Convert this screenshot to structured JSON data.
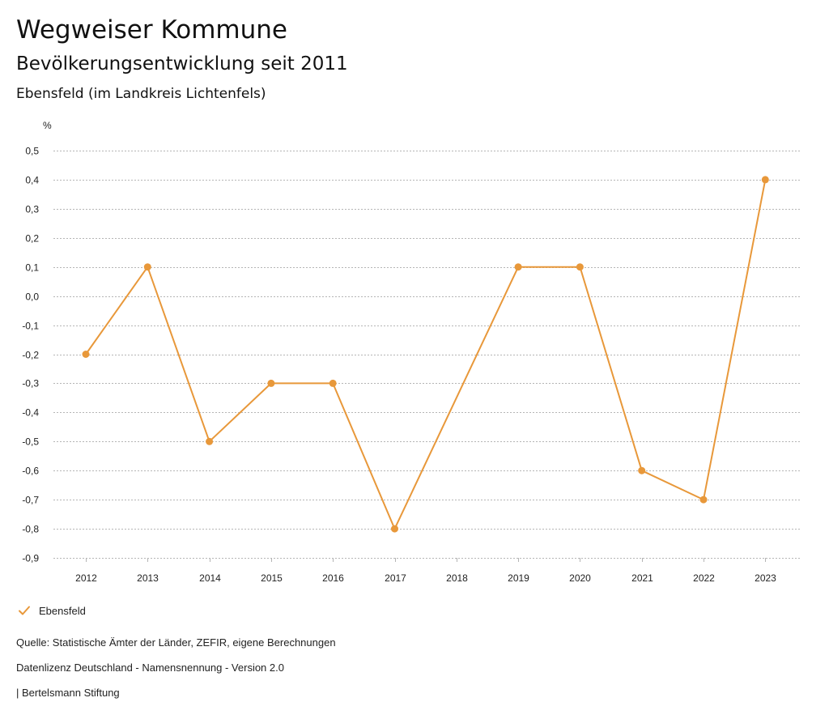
{
  "header": {
    "title": "Wegweiser Kommune",
    "subtitle": "Bevölkerungsentwicklung seit 2011",
    "region": "Ebensfeld (im Landkreis Lichtenfels)"
  },
  "legend": {
    "label": "Ebensfeld",
    "icon": "checkmark-icon"
  },
  "footer": {
    "source": "Quelle: Statistische Ämter der Länder, ZEFIR, eigene Berechnungen",
    "license": "Datenlizenz Deutschland - Namensnennung - Version 2.0",
    "publisher": "| Bertelsmann Stiftung"
  },
  "colors": {
    "series": "#e8983a",
    "grid": "#b5b5b5",
    "text": "#222222"
  },
  "chart_data": {
    "type": "line",
    "title": "Bevölkerungsentwicklung seit 2011",
    "ylabel": "%",
    "xlabel": "",
    "x": [
      "2012",
      "2013",
      "2014",
      "2015",
      "2016",
      "2017",
      "2018",
      "2019",
      "2020",
      "2021",
      "2022",
      "2023"
    ],
    "ylim": [
      -0.9,
      0.5
    ],
    "yticks": [
      0.5,
      0.4,
      0.3,
      0.2,
      0.1,
      0.0,
      -0.1,
      -0.2,
      -0.3,
      -0.4,
      -0.5,
      -0.6,
      -0.7,
      -0.8,
      -0.9
    ],
    "ytick_labels": [
      "0,5",
      "0,4",
      "0,3",
      "0,2",
      "0,1",
      "0,0",
      "-0,1",
      "-0,2",
      "-0,3",
      "-0,4",
      "-0,5",
      "-0,6",
      "-0,7",
      "-0,8",
      "-0,9"
    ],
    "grid": true,
    "legend_position": "bottom-left",
    "series": [
      {
        "name": "Ebensfeld",
        "values": [
          -0.2,
          0.1,
          -0.5,
          -0.3,
          -0.3,
          -0.8,
          null,
          0.1,
          0.1,
          -0.6,
          -0.7,
          0.4
        ]
      }
    ]
  }
}
